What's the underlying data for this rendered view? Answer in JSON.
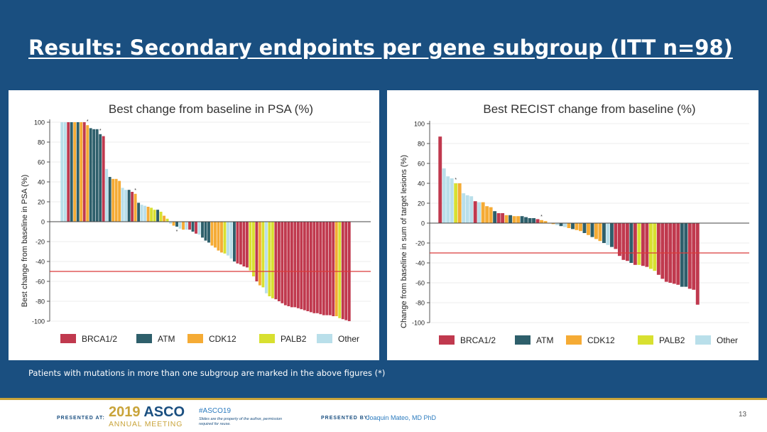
{
  "slide": {
    "title": "Results: Secondary endpoints per gene subgroup (ITT n=98)",
    "footnote": "Patients with mutations in more than one subgroup are marked in the above figures (*)",
    "footer": {
      "presented_at": "PRESENTED AT:",
      "asco_year": "2019",
      "asco_word": "ASCO",
      "asco_sub": "ANNUAL MEETING",
      "hashtag": "#ASCO19",
      "disclaimer": "Slides are the property of the author, permission required for reuse.",
      "presented_by": "PRESENTED BY:",
      "presenter": "Joaquin Mateo, MD PhD",
      "slide_number": "13"
    }
  },
  "colors": {
    "BRCA1/2": "#c0394e",
    "ATM": "#2e5f6b",
    "CDK12": "#f5ab35",
    "PALB2": "#d8e030",
    "Other": "#b9dfea",
    "threshold": "#d93a3a",
    "background": "#1a4f80",
    "accent": "#c9a43a"
  },
  "chart_data": [
    {
      "type": "bar",
      "title": "Best change from baseline in PSA (%)",
      "xlabel": "",
      "ylabel": "Best change from baseline in PSA (%)",
      "ylim": [
        -100,
        100
      ],
      "yticks": [
        100,
        80,
        60,
        40,
        20,
        0,
        -20,
        -40,
        -60,
        -80,
        -100
      ],
      "threshold": -50,
      "grid": true,
      "legend": [
        "BRCA1/2",
        "ATM",
        "CDK12",
        "PALB2",
        "Other"
      ],
      "legend_position": "bottom",
      "starred": [
        8,
        12,
        23,
        36
      ],
      "values": [
        100,
        100,
        100,
        100,
        100,
        100,
        100,
        100,
        97,
        94,
        93,
        93,
        88,
        86,
        53,
        45,
        43,
        43,
        41,
        34,
        32,
        32,
        30,
        28,
        19,
        17,
        16,
        15,
        14,
        12,
        12,
        10,
        6,
        3,
        -2,
        -4,
        -5,
        -7,
        -8,
        -8,
        -8,
        -10,
        -12,
        -13,
        -16,
        -19,
        -21,
        -24,
        -26,
        -29,
        -31,
        -32,
        -34,
        -37,
        -40,
        -42,
        -43,
        -45,
        -46,
        -49,
        -55,
        -60,
        -64,
        -66,
        -72,
        -75,
        -77,
        -78,
        -80,
        -82,
        -84,
        -85,
        -86,
        -86,
        -87,
        -88,
        -89,
        -90,
        -91,
        -92,
        -92,
        -93,
        -94,
        -94,
        -94,
        -95,
        -95,
        -97,
        -98,
        -99,
        -100
      ],
      "groups": [
        "Other",
        "Other",
        "BRCA1/2",
        "ATM",
        "CDK12",
        "ATM",
        "CDK12",
        "BRCA1/2",
        "CDK12",
        "ATM",
        "ATM",
        "ATM",
        "ATM",
        "BRCA1/2",
        "Other",
        "ATM",
        "CDK12",
        "CDK12",
        "CDK12",
        "Other",
        "Other",
        "ATM",
        "BRCA1/2",
        "CDK12",
        "ATM",
        "Other",
        "Other",
        "CDK12",
        "PALB2",
        "PALB2",
        "ATM",
        "PALB2",
        "CDK12",
        "PALB2",
        "Other",
        "CDK12",
        "ATM",
        "Other",
        "CDK12",
        "Other",
        "BRCA1/2",
        "ATM",
        "BRCA1/2",
        "Other",
        "ATM",
        "ATM",
        "ATM",
        "CDK12",
        "CDK12",
        "CDK12",
        "CDK12",
        "PALB2",
        "Other",
        "Other",
        "ATM",
        "BRCA1/2",
        "BRCA1/2",
        "BRCA1/2",
        "BRCA1/2",
        "PALB2",
        "PALB2",
        "BRCA1/2",
        "CDK12",
        "PALB2",
        "Other",
        "PALB2",
        "PALB2",
        "BRCA1/2",
        "BRCA1/2",
        "BRCA1/2",
        "BRCA1/2",
        "BRCA1/2",
        "BRCA1/2",
        "BRCA1/2",
        "BRCA1/2",
        "BRCA1/2",
        "BRCA1/2",
        "BRCA1/2",
        "BRCA1/2",
        "BRCA1/2",
        "BRCA1/2",
        "BRCA1/2",
        "BRCA1/2",
        "BRCA1/2",
        "BRCA1/2",
        "BRCA1/2",
        "CDK12",
        "PALB2",
        "BRCA1/2",
        "BRCA1/2",
        "BRCA1/2"
      ]
    },
    {
      "type": "bar",
      "title": "Best RECIST change from baseline (%)",
      "xlabel": "",
      "ylabel": "Change from baseline in sum of target lesions (%)",
      "ylim": [
        -100,
        100
      ],
      "yticks": [
        100,
        80,
        60,
        40,
        20,
        0,
        -20,
        -40,
        -60,
        -80,
        -100
      ],
      "threshold": -30,
      "grid": true,
      "legend": [
        "BRCA1/2",
        "ATM",
        "CDK12",
        "PALB2",
        "Other"
      ],
      "legend_position": "bottom",
      "starred": [
        4,
        26
      ],
      "values": [
        87,
        55,
        47,
        45,
        40,
        40,
        30,
        28,
        27,
        22,
        21,
        21,
        17,
        16,
        12,
        10,
        10,
        8,
        8,
        7,
        7,
        7,
        6,
        5,
        5,
        4,
        3,
        2,
        0,
        -1,
        -2,
        -3,
        -4,
        -5,
        -6,
        -7,
        -8,
        -10,
        -12,
        -14,
        -16,
        -18,
        -20,
        -22,
        -24,
        -26,
        -33,
        -37,
        -38,
        -40,
        -42,
        -42,
        -43,
        -44,
        -46,
        -48,
        -52,
        -56,
        -59,
        -60,
        -61,
        -62,
        -64,
        -64,
        -66,
        -67,
        -82
      ],
      "groups": [
        "BRCA1/2",
        "Other",
        "Other",
        "Other",
        "PALB2",
        "CDK12",
        "Other",
        "Other",
        "Other",
        "BRCA1/2",
        "Other",
        "CDK12",
        "CDK12",
        "CDK12",
        "ATM",
        "BRCA1/2",
        "BRCA1/2",
        "CDK12",
        "ATM",
        "CDK12",
        "CDK12",
        "ATM",
        "ATM",
        "ATM",
        "ATM",
        "BRCA1/2",
        "CDK12",
        "CDK12",
        "CDK12",
        "CDK12",
        "Other",
        "ATM",
        "Other",
        "CDK12",
        "ATM",
        "CDK12",
        "CDK12",
        "ATM",
        "CDK12",
        "ATM",
        "CDK12",
        "CDK12",
        "ATM",
        "Other",
        "ATM",
        "BRCA1/2",
        "BRCA1/2",
        "BRCA1/2",
        "BRCA1/2",
        "ATM",
        "BRCA1/2",
        "PALB2",
        "BRCA1/2",
        "BRCA1/2",
        "PALB2",
        "PALB2",
        "BRCA1/2",
        "BRCA1/2",
        "BRCA1/2",
        "BRCA1/2",
        "BRCA1/2",
        "BRCA1/2",
        "ATM",
        "ATM",
        "BRCA1/2",
        "BRCA1/2",
        "BRCA1/2"
      ]
    }
  ]
}
